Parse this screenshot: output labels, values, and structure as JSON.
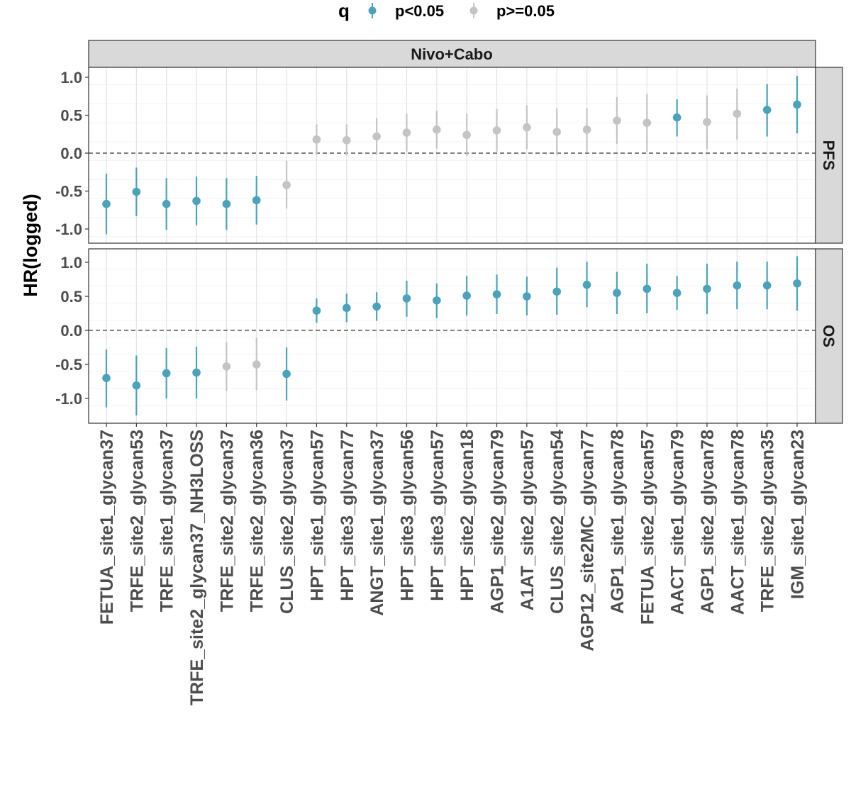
{
  "chart_data": {
    "type": "scatter",
    "subtype": "point-range faceted",
    "facet_title": "Nivo+Cabo",
    "ylabel": "HR(logged)",
    "ylim": [
      -1.35,
      1.4
    ],
    "y_ticks": [
      -1.0,
      -0.5,
      0.0,
      0.5,
      1.0
    ],
    "y_tick_labels": [
      "-1.0",
      "-0.5",
      "0.0",
      "0.5",
      "1.0"
    ],
    "reference_line": 0,
    "grid": true,
    "legend": {
      "title": "q",
      "position": "top",
      "entries": [
        {
          "label": "p<0.05",
          "color": "#4aa3bc"
        },
        {
          "label": "p>=0.05",
          "color": "#c4c4c4"
        }
      ]
    },
    "categories": [
      "FETUA_site1_glycan37",
      "TRFE_site2_glycan53",
      "TRFE_site1_glycan37",
      "TRFE_site2_glycan37_NH3LOSS",
      "TRFE_site2_glycan37",
      "TRFE_site2_glycan36",
      "CLUS_site2_glycan37",
      "HPT_site1_glycan57",
      "HPT_site3_glycan77",
      "ANGT_site1_glycan37",
      "HPT_site3_glycan56",
      "HPT_site3_glycan57",
      "HPT_site2_glycan18",
      "AGP1_site2_glycan79",
      "A1AT_site2_glycan57",
      "CLUS_site2_glycan54",
      "AGP12_site2MC_glycan77",
      "AGP1_site1_glycan78",
      "FETUA_site2_glycan57",
      "AACT_site1_glycan79",
      "AGP1_site2_glycan78",
      "AACT_site1_glycan78",
      "TRFE_site2_glycan35",
      "IGM_site1_glycan23"
    ],
    "panels": [
      {
        "name": "PFS",
        "estimate": [
          -0.67,
          -0.51,
          -0.67,
          -0.63,
          -0.67,
          -0.62,
          -0.42,
          0.18,
          0.17,
          0.22,
          0.27,
          0.31,
          0.24,
          0.3,
          0.34,
          0.28,
          0.31,
          0.43,
          0.4,
          0.47,
          0.41,
          0.52,
          0.57,
          0.64
        ],
        "lower": [
          -1.07,
          -0.83,
          -1.01,
          -0.95,
          -1.01,
          -0.94,
          -0.73,
          -0.02,
          -0.03,
          -0.02,
          0.02,
          0.06,
          -0.04,
          0.02,
          0.05,
          -0.02,
          0.02,
          0.12,
          0.01,
          0.22,
          0.05,
          0.18,
          0.22,
          0.26
        ],
        "upper": [
          -0.27,
          -0.19,
          -0.33,
          -0.31,
          -0.33,
          -0.3,
          -0.1,
          0.38,
          0.38,
          0.46,
          0.52,
          0.56,
          0.52,
          0.58,
          0.63,
          0.59,
          0.59,
          0.74,
          0.78,
          0.71,
          0.76,
          0.85,
          0.91,
          1.02
        ],
        "significant": [
          true,
          true,
          true,
          true,
          true,
          true,
          false,
          false,
          false,
          false,
          false,
          false,
          false,
          false,
          false,
          false,
          false,
          false,
          false,
          true,
          false,
          false,
          true,
          true
        ]
      },
      {
        "name": "OS",
        "estimate": [
          -0.7,
          -0.81,
          -0.63,
          -0.62,
          -0.53,
          -0.5,
          -0.64,
          0.29,
          0.33,
          0.35,
          0.47,
          0.44,
          0.51,
          0.53,
          0.5,
          0.57,
          0.67,
          0.55,
          0.61,
          0.55,
          0.61,
          0.66,
          0.66,
          0.69
        ],
        "lower": [
          -1.13,
          -1.25,
          -1.0,
          -1.0,
          -0.89,
          -0.88,
          -1.03,
          0.11,
          0.12,
          0.14,
          0.2,
          0.18,
          0.22,
          0.24,
          0.22,
          0.23,
          0.34,
          0.24,
          0.25,
          0.3,
          0.24,
          0.31,
          0.31,
          0.29
        ],
        "upper": [
          -0.28,
          -0.37,
          -0.26,
          -0.24,
          -0.17,
          -0.11,
          -0.25,
          0.47,
          0.54,
          0.56,
          0.73,
          0.69,
          0.8,
          0.82,
          0.79,
          0.92,
          1.01,
          0.86,
          0.98,
          0.8,
          0.98,
          1.01,
          1.01,
          1.09
        ],
        "significant": [
          true,
          true,
          true,
          true,
          false,
          false,
          true,
          true,
          true,
          true,
          true,
          true,
          true,
          true,
          true,
          true,
          true,
          true,
          true,
          true,
          true,
          true,
          true,
          true
        ]
      }
    ]
  }
}
